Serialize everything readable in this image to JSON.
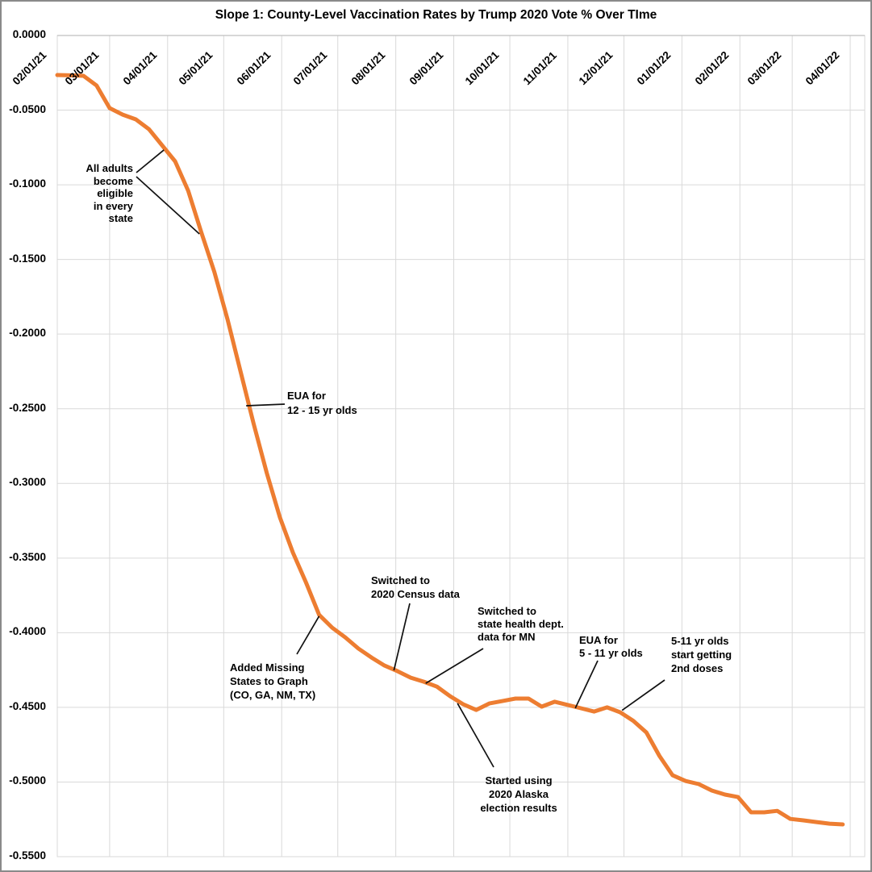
{
  "window": {
    "background": "#ffffff",
    "frame_color": "#8a8a8a"
  },
  "chart_data": {
    "type": "line",
    "title": "Slope 1: County-Level Vaccination Rates by Trump 2020 Vote % Over TIme",
    "grid": true,
    "legend": "none",
    "colors": {
      "line": "#ED7D31",
      "gridline": "#d9d9d9",
      "axis_line": "#bfbfbf",
      "leader_line": "#111111",
      "text": "#000000"
    },
    "x_axis": {
      "tick_labels": [
        "02/01/21",
        "03/01/21",
        "04/01/21",
        "05/01/21",
        "06/01/21",
        "07/01/21",
        "08/01/21",
        "09/01/21",
        "10/01/21",
        "11/01/21",
        "12/01/21",
        "01/01/22",
        "02/01/22",
        "03/01/22",
        "04/01/22"
      ],
      "label_rotation_deg": -45
    },
    "y_axis": {
      "tick_labels": [
        "0.0000",
        "-0.0500",
        "-0.1000",
        "-0.1500",
        "-0.2000",
        "-0.2500",
        "-0.3000",
        "-0.3500",
        "-0.4000",
        "-0.4500",
        "-0.5000",
        "-0.5500"
      ],
      "tick_values": [
        0,
        -0.05,
        -0.1,
        -0.15,
        -0.2,
        -0.25,
        -0.3,
        -0.35,
        -0.4,
        -0.45,
        -0.5,
        -0.55
      ],
      "min": -0.55,
      "max": 0
    },
    "series": [
      {
        "name": "county-level-vaccination-slope",
        "color": "#ED7D31",
        "points": [
          {
            "date": "02/01/21",
            "value": -0.0265
          },
          {
            "date": "02/08/21",
            "value": -0.0267
          },
          {
            "date": "02/15/21",
            "value": -0.027
          },
          {
            "date": "02/22/21",
            "value": -0.0335
          },
          {
            "date": "03/01/21",
            "value": -0.0486
          },
          {
            "date": "03/08/21",
            "value": -0.053
          },
          {
            "date": "03/15/21",
            "value": -0.0562
          },
          {
            "date": "03/22/21",
            "value": -0.0627
          },
          {
            "date": "03/29/21",
            "value": -0.0735
          },
          {
            "date": "04/05/21",
            "value": -0.0843
          },
          {
            "date": "04/12/21",
            "value": -0.104
          },
          {
            "date": "04/19/21",
            "value": -0.1318
          },
          {
            "date": "04/26/21",
            "value": -0.1583
          },
          {
            "date": "05/03/21",
            "value": -0.19
          },
          {
            "date": "05/10/21",
            "value": -0.225
          },
          {
            "date": "05/17/21",
            "value": -0.26
          },
          {
            "date": "05/24/21",
            "value": -0.293
          },
          {
            "date": "05/31/21",
            "value": -0.3226
          },
          {
            "date": "06/07/21",
            "value": -0.3463
          },
          {
            "date": "06/14/21",
            "value": -0.3663
          },
          {
            "date": "06/21/21",
            "value": -0.388
          },
          {
            "date": "06/28/21",
            "value": -0.3966
          },
          {
            "date": "07/05/21",
            "value": -0.4031
          },
          {
            "date": "07/12/21",
            "value": -0.4106
          },
          {
            "date": "07/19/21",
            "value": -0.4166
          },
          {
            "date": "07/26/21",
            "value": -0.422
          },
          {
            "date": "08/02/21",
            "value": -0.4258
          },
          {
            "date": "08/09/21",
            "value": -0.4301
          },
          {
            "date": "08/16/21",
            "value": -0.4328
          },
          {
            "date": "08/23/21",
            "value": -0.4361
          },
          {
            "date": "08/30/21",
            "value": -0.4425
          },
          {
            "date": "09/06/21",
            "value": -0.4479
          },
          {
            "date": "09/13/21",
            "value": -0.4517
          },
          {
            "date": "09/20/21",
            "value": -0.4474
          },
          {
            "date": "09/27/21",
            "value": -0.4458
          },
          {
            "date": "10/04/21",
            "value": -0.4441
          },
          {
            "date": "10/11/21",
            "value": -0.4441
          },
          {
            "date": "10/18/21",
            "value": -0.4495
          },
          {
            "date": "10/25/21",
            "value": -0.4462
          },
          {
            "date": "11/01/21",
            "value": -0.4484
          },
          {
            "date": "11/08/21",
            "value": -0.4506
          },
          {
            "date": "11/15/21",
            "value": -0.4528
          },
          {
            "date": "11/22/21",
            "value": -0.45
          },
          {
            "date": "11/29/21",
            "value": -0.4533
          },
          {
            "date": "12/06/21",
            "value": -0.459
          },
          {
            "date": "12/13/21",
            "value": -0.4668
          },
          {
            "date": "12/20/21",
            "value": -0.4825
          },
          {
            "date": "12/27/21",
            "value": -0.4955
          },
          {
            "date": "01/03/22",
            "value": -0.4993
          },
          {
            "date": "01/10/22",
            "value": -0.5014
          },
          {
            "date": "01/17/22",
            "value": -0.5057
          },
          {
            "date": "01/24/22",
            "value": -0.5084
          },
          {
            "date": "01/31/22",
            "value": -0.5101
          },
          {
            "date": "02/07/22",
            "value": -0.5203
          },
          {
            "date": "02/14/22",
            "value": -0.5203
          },
          {
            "date": "02/21/22",
            "value": -0.5193
          },
          {
            "date": "02/28/22",
            "value": -0.5247
          },
          {
            "date": "03/07/22",
            "value": -0.5257
          },
          {
            "date": "03/14/22",
            "value": -0.5268
          },
          {
            "date": "03/21/22",
            "value": -0.5279
          },
          {
            "date": "03/28/22",
            "value": -0.5284
          }
        ]
      }
    ],
    "annotations": [
      {
        "id": "all-adults",
        "lines": [
          "All adults",
          "become",
          "eligible",
          "in every",
          "state"
        ],
        "targets": [
          {
            "date": "03/30/21",
            "value": -0.0767
          },
          {
            "date": "04/18/21",
            "value": -0.1329
          }
        ]
      },
      {
        "id": "eua-12-15",
        "lines": [
          "EUA for",
          "12 - 15 yr olds"
        ],
        "targets": [
          {
            "date": "05/13/21",
            "value": -0.248
          }
        ]
      },
      {
        "id": "added-missing-states",
        "lines": [
          "Added Missing",
          "States to Graph",
          "(CO, GA, NM, TX)"
        ],
        "targets": [
          {
            "date": "06/21/21",
            "value": -0.3889
          }
        ]
      },
      {
        "id": "census",
        "lines": [
          "Switched to",
          "2020 Census data"
        ],
        "targets": [
          {
            "date": "07/31/21",
            "value": -0.4252
          }
        ]
      },
      {
        "id": "mn",
        "lines": [
          "Switched to",
          "state health dept.",
          "data for MN"
        ],
        "targets": [
          {
            "date": "08/17/21",
            "value": -0.4339
          }
        ]
      },
      {
        "id": "alaska",
        "lines": [
          "Started using",
          "2020 Alaska",
          "election results"
        ],
        "targets": [
          {
            "date": "09/03/21",
            "value": -0.4473
          }
        ]
      },
      {
        "id": "eua-5-11",
        "lines": [
          "EUA for",
          "5 - 11 yr olds"
        ],
        "targets": [
          {
            "date": "11/05/21",
            "value": -0.4505
          }
        ]
      },
      {
        "id": "second-doses",
        "lines": [
          "5-11 yr olds",
          "start getting",
          "2nd doses"
        ],
        "targets": [
          {
            "date": "11/30/21",
            "value": -0.452
          }
        ]
      }
    ]
  }
}
